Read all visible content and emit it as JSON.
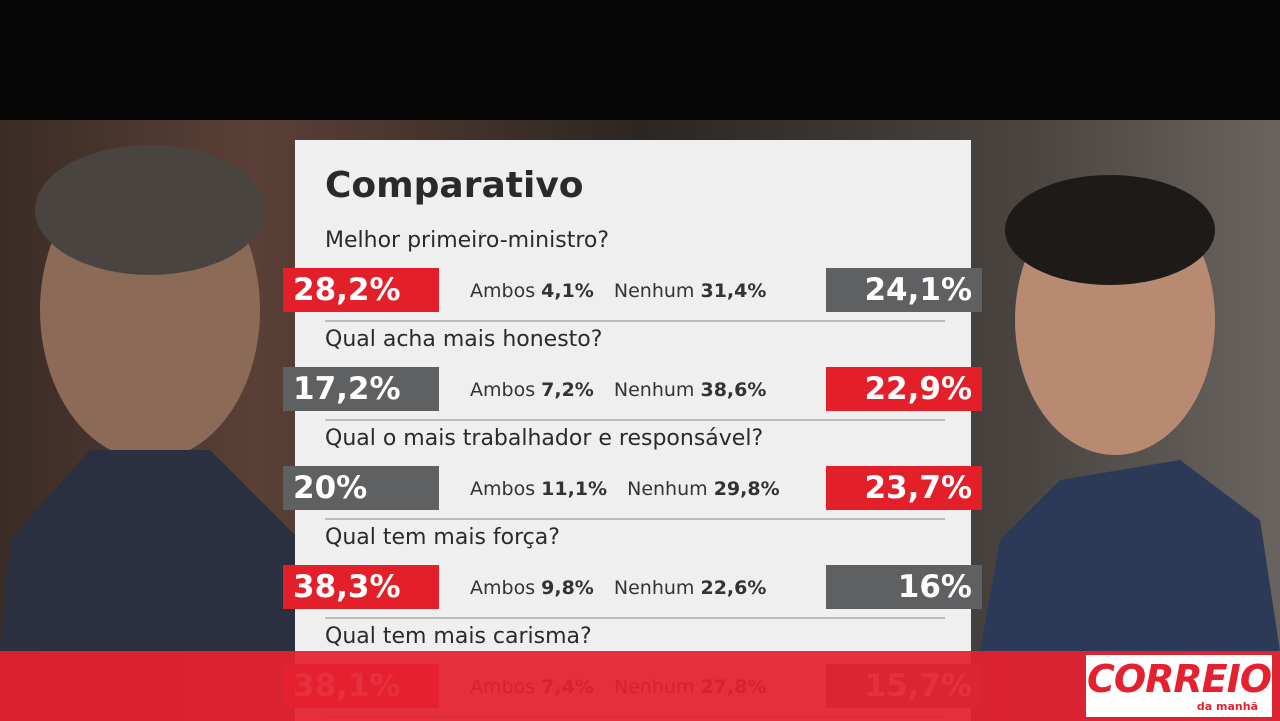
{
  "title": "Comparativo",
  "ambos_label": "Ambos",
  "nenhum_label": "Nenhum",
  "rows": [
    {
      "question": "Melhor primeiro-ministro?",
      "left": "28,2%",
      "left_color": "#e3202a",
      "ambos": "4,1%",
      "nenhum": "31,4%",
      "right": "24,1%",
      "right_color": "#5f6062"
    },
    {
      "question": "Qual acha mais honesto?",
      "left": "17,2%",
      "left_color": "#5f6062",
      "ambos": "7,2%",
      "nenhum": "38,6%",
      "right": "22,9%",
      "right_color": "#e3202a"
    },
    {
      "question": "Qual o mais trabalhador e responsável?",
      "left": "20%",
      "left_color": "#5f6062",
      "ambos": "11,1%",
      "nenhum": "29,8%",
      "right": "23,7%",
      "right_color": "#e3202a"
    },
    {
      "question": "Qual tem mais força?",
      "left": "38,3%",
      "left_color": "#e3202a",
      "ambos": "9,8%",
      "nenhum": "22,6%",
      "right": "16%",
      "right_color": "#5f6062"
    },
    {
      "question": "Qual tem mais carisma?",
      "left": "38,1%",
      "left_color": "#e3202a",
      "ambos": "7,4%",
      "nenhum": "27,8%",
      "right": "15,7%",
      "right_color": "#5f6062"
    }
  ],
  "logo": {
    "name": "CORREIO",
    "tagline": "da manhã"
  }
}
